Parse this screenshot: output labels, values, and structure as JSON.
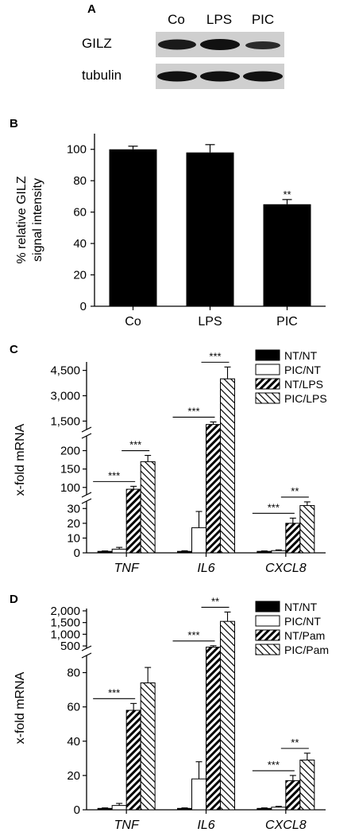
{
  "panel_letters": [
    "A",
    "B",
    "C",
    "D"
  ],
  "blot": {
    "lanes": [
      "Co",
      "LPS",
      "PIC"
    ],
    "rows": [
      "GILZ",
      "tubulin"
    ]
  },
  "colors": {
    "bar": "#000000",
    "background": "#ffffff",
    "band": "#1a1a1a",
    "blot_bg": "#c8c8c8"
  },
  "chart_data": [
    {
      "panel": "B",
      "type": "bar",
      "categories": [
        "Co",
        "LPS",
        "PIC"
      ],
      "values": [
        100,
        98,
        65
      ],
      "errors": [
        2,
        5,
        3
      ],
      "annotations": [
        "",
        "",
        "**"
      ],
      "ylabel": "% relative GILZ signal intensity",
      "ylabel_lines": [
        "% relative GILZ",
        "signal intensity"
      ],
      "ylim": [
        0,
        110
      ],
      "yticks": [
        0,
        20,
        40,
        60,
        80,
        100
      ]
    },
    {
      "panel": "C",
      "type": "bar",
      "categories": [
        "TNF",
        "IL6",
        "CXCL8"
      ],
      "ylabel": "x-fold mRNA",
      "axis_breaks": true,
      "segments": [
        {
          "range": [
            0,
            35
          ],
          "ticks": [
            0,
            10,
            20,
            30
          ]
        },
        {
          "range": [
            80,
            240
          ],
          "ticks": [
            100,
            150,
            200
          ]
        },
        {
          "range": [
            1000,
            5000
          ],
          "ticks": [
            1500,
            3000,
            4500
          ]
        }
      ],
      "tick_labels": {
        "0": "0",
        "10": "10",
        "20": "20",
        "30": "30",
        "100": "100",
        "150": "150",
        "200": "200",
        "1500": "1,500",
        "3000": "3,000",
        "4500": "4,500"
      },
      "series": [
        {
          "name": "NT/NT",
          "pattern": "solid",
          "values": [
            1,
            1,
            1
          ],
          "errors": [
            0.3,
            0.4,
            0.3
          ]
        },
        {
          "name": "PIC/NT",
          "pattern": "open",
          "values": [
            2.5,
            17,
            1.5
          ],
          "errors": [
            1.2,
            11,
            0.5
          ]
        },
        {
          "name": "NT/LPS",
          "pattern": "hatch",
          "values": [
            95,
            1300,
            20
          ],
          "errors": [
            8,
            150,
            3.5
          ]
        },
        {
          "name": "PIC/LPS",
          "pattern": "backhatch",
          "values": [
            170,
            4000,
            32
          ],
          "errors": [
            17,
            700,
            2.5
          ]
        }
      ],
      "significance": [
        {
          "category": "TNF",
          "from": 0,
          "to": 2,
          "label": "***"
        },
        {
          "category": "TNF",
          "from": 2,
          "to": 3,
          "label": "***"
        },
        {
          "category": "IL6",
          "from": 0,
          "to": 2,
          "label": "***"
        },
        {
          "category": "IL6",
          "from": 2,
          "to": 3,
          "label": "***"
        },
        {
          "category": "CXCL8",
          "from": 0,
          "to": 2,
          "label": "***"
        },
        {
          "category": "CXCL8",
          "from": 2,
          "to": 3,
          "label": "**"
        }
      ],
      "legend": "top-right"
    },
    {
      "panel": "D",
      "type": "bar",
      "categories": [
        "TNF",
        "IL6",
        "CXCL8"
      ],
      "ylabel": "x-fold mRNA",
      "axis_breaks": true,
      "segments": [
        {
          "range": [
            0,
            90
          ],
          "ticks": [
            0,
            20,
            40,
            60,
            80
          ]
        },
        {
          "range": [
            400,
            2100
          ],
          "ticks": [
            500,
            1000,
            1500,
            2000
          ]
        }
      ],
      "tick_labels": {
        "0": "0",
        "20": "20",
        "40": "40",
        "60": "60",
        "80": "80",
        "500": "500",
        "1000": "1,000",
        "1500": "1,500",
        "2000": "2,000"
      },
      "series": [
        {
          "name": "NT/NT",
          "pattern": "solid",
          "values": [
            0.8,
            0.8,
            0.8
          ],
          "errors": [
            0.3,
            0.3,
            0.3
          ]
        },
        {
          "name": "PIC/NT",
          "pattern": "open",
          "values": [
            2.5,
            18,
            1.5
          ],
          "errors": [
            1.2,
            10,
            0.5
          ]
        },
        {
          "name": "NT/Pam",
          "pattern": "hatch",
          "values": [
            58,
            450,
            17
          ],
          "errors": [
            4,
            60,
            3
          ]
        },
        {
          "name": "PIC/Pam",
          "pattern": "backhatch",
          "values": [
            74,
            1550,
            29
          ],
          "errors": [
            9,
            400,
            4
          ]
        }
      ],
      "significance": [
        {
          "category": "TNF",
          "from": 0,
          "to": 2,
          "label": "***"
        },
        {
          "category": "IL6",
          "from": 0,
          "to": 2,
          "label": "***"
        },
        {
          "category": "IL6",
          "from": 2,
          "to": 3,
          "label": "**"
        },
        {
          "category": "CXCL8",
          "from": 0,
          "to": 2,
          "label": "***"
        },
        {
          "category": "CXCL8",
          "from": 2,
          "to": 3,
          "label": "**"
        }
      ],
      "legend": "top-right"
    }
  ]
}
